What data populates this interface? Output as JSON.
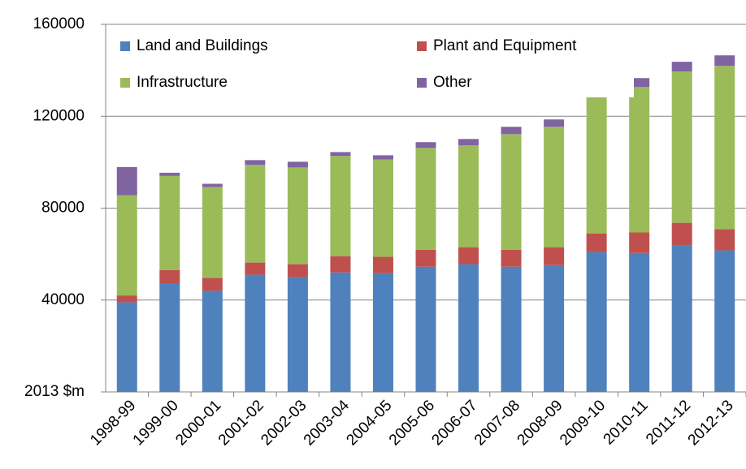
{
  "chart_data": {
    "type": "stacked_bar",
    "categories": [
      "1998-99",
      "1999-00",
      "2000-01",
      "2001-02",
      "2002-03",
      "2003-04",
      "2004-05",
      "2005-06",
      "2006-07",
      "2007-08",
      "2008-09",
      "2009-10",
      "2010-11",
      "2011-12",
      "2012-13"
    ],
    "series": [
      {
        "name": "Land and Buildings",
        "color": "#4f81bd",
        "values": [
          39000,
          47000,
          44000,
          51000,
          50000,
          52000,
          51700,
          54500,
          55600,
          54500,
          55200,
          60900,
          60500,
          63700,
          61600
        ]
      },
      {
        "name": "Plant and Equipment",
        "color": "#c0504d",
        "values": [
          3000,
          6000,
          5600,
          5300,
          5600,
          7100,
          7100,
          7400,
          7400,
          7400,
          7800,
          8100,
          8900,
          9900,
          9200
        ]
      },
      {
        "name": "Infrastructure",
        "color": "#9bbb59",
        "values": [
          43600,
          41000,
          39600,
          42500,
          42100,
          43600,
          42400,
          44300,
          44300,
          50300,
          52400,
          63400,
          63300,
          65900,
          71100
        ]
      },
      {
        "name": "Other",
        "color": "#8064a2",
        "values": [
          12300,
          1400,
          1400,
          2100,
          2500,
          1700,
          1800,
          2500,
          2800,
          3200,
          3200,
          3200,
          3900,
          4200,
          4600
        ]
      }
    ],
    "ylim": [
      0,
      160000
    ],
    "yticks": [
      {
        "value": 0,
        "label": "2013 $m"
      },
      40000,
      80000,
      120000,
      160000
    ],
    "grid": true
  }
}
